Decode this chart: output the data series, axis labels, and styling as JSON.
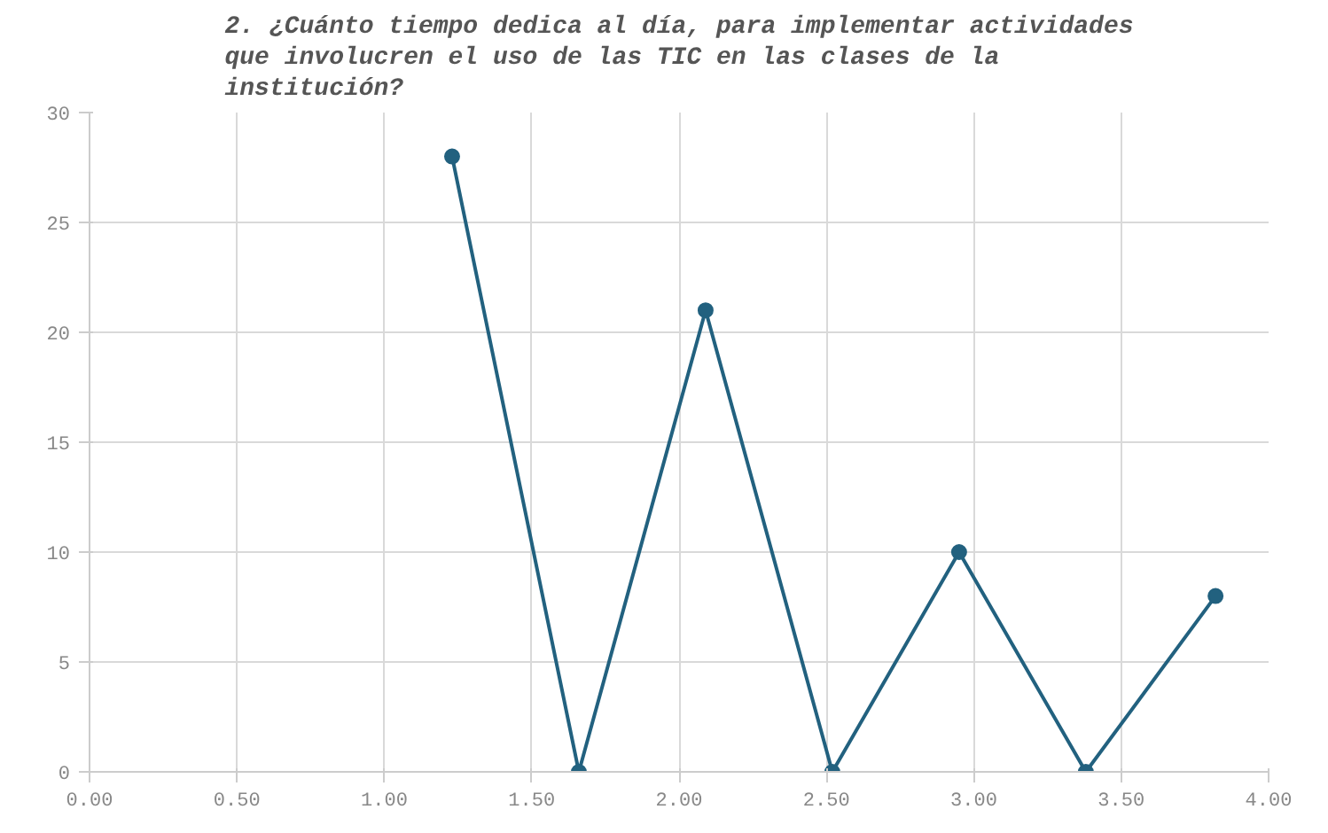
{
  "chart_data": {
    "type": "line",
    "title": "2. ¿Cuánto tiempo dedica al día, para implementar actividades que involucren el uso de las TIC en las clases de la institución?",
    "x": [
      1.23,
      1.66,
      2.09,
      2.52,
      2.95,
      3.38,
      3.82
    ],
    "series": [
      {
        "color": "#22617f",
        "values": [
          28,
          0,
          21,
          0,
          10,
          0,
          8
        ]
      }
    ],
    "xlim": [
      0,
      4
    ],
    "xticks": [
      {
        "value": 0,
        "label": "0.00"
      },
      {
        "value": 0.5,
        "label": "0.50"
      },
      {
        "value": 1,
        "label": "1.00"
      },
      {
        "value": 1.5,
        "label": "1.50"
      },
      {
        "value": 2,
        "label": "2.00"
      },
      {
        "value": 2.5,
        "label": "2.50"
      },
      {
        "value": 3,
        "label": "3.00"
      },
      {
        "value": 3.5,
        "label": "3.50"
      },
      {
        "value": 4,
        "label": "4.00"
      }
    ],
    "ylim": [
      0,
      30
    ],
    "yticks": [
      0,
      5,
      10,
      15,
      20,
      25,
      30
    ],
    "grid": true,
    "marker": "circle",
    "line_style": "solid"
  }
}
